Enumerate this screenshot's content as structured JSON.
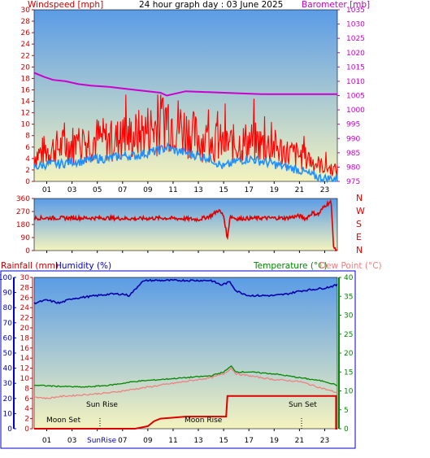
{
  "header": {
    "title": "24 hour graph day : 03 June 2025",
    "wind_label": "Windspeed [mph]",
    "baro_label": "Barometer [mb]"
  },
  "lower_header": {
    "rain_label": "Rainfall (mm)",
    "humidity_label": "Humidity (%)",
    "temp_label": "Temperature (°C)",
    "dew_label": "Dew Point (°C)"
  },
  "annotations": {
    "moon_set": "Moon Set",
    "sun_rise": "Sun Rise",
    "moon_rise": "Moon Rise",
    "sun_set": "Sun Set",
    "sunrise_axis": "SunRise"
  },
  "colors": {
    "wind": "#ff0000",
    "gust_avg": "#1e90ff",
    "barometer": "#cc00cc",
    "direction": "#dd0000",
    "humidity": "#0000aa",
    "temperature": "#008800",
    "dew_point": "#f08080",
    "rain": "#dd0000",
    "left_axis_top": "#cc0000",
    "left_axis_bottom": "#0000cc",
    "right_axis_bottom": "#008800",
    "sky_top": "#5a9ce6",
    "sky_bottom": "#f4f3bf"
  },
  "chart_data": [
    {
      "type": "line",
      "panel": "wind-barometer",
      "x_ticks": [
        "01",
        "03",
        "05",
        "07",
        "09",
        "11",
        "13",
        "15",
        "17",
        "19",
        "21",
        "23"
      ],
      "x_range": [
        0,
        24
      ],
      "left_axis": {
        "ticks": [
          "0",
          "2",
          "4",
          "6",
          "8",
          "10",
          "12",
          "14",
          "16",
          "18",
          "20",
          "22",
          "24",
          "26",
          "28",
          "30"
        ],
        "range": [
          0,
          30
        ]
      },
      "right_axis": {
        "ticks": [
          "975",
          "980",
          "985",
          "990",
          "995",
          "1000",
          "1005",
          "1010",
          "1015",
          "1020",
          "1025",
          "1030",
          "1035"
        ],
        "range": [
          975,
          1035
        ]
      },
      "series": [
        {
          "key": "gust",
          "x": [
            0,
            1,
            2,
            3,
            4,
            5,
            6,
            7,
            8,
            9,
            10,
            10.5,
            11,
            12,
            13,
            14,
            15,
            16,
            17,
            18,
            19,
            20,
            21,
            22,
            23,
            24
          ],
          "values": [
            4.5,
            5.5,
            6,
            6.5,
            7,
            7.5,
            7,
            7.5,
            8,
            9,
            10,
            11.5,
            10.5,
            9,
            7.5,
            7,
            6.5,
            6.5,
            7,
            6.5,
            6,
            5,
            4.5,
            3.5,
            2.5,
            2
          ]
        },
        {
          "key": "average",
          "x": [
            0,
            1,
            2,
            3,
            4,
            5,
            6,
            7,
            8,
            9,
            10,
            10.5,
            11,
            12,
            13,
            14,
            15,
            16,
            17,
            18,
            19,
            20,
            21,
            22,
            23,
            24
          ],
          "values": [
            2.5,
            3,
            3,
            3.5,
            3.5,
            4,
            4,
            4.5,
            4.5,
            5,
            5.5,
            6,
            5.5,
            5,
            4.5,
            4,
            2.5,
            3.5,
            4,
            3.5,
            3,
            2.5,
            2,
            1,
            0.5,
            0.5
          ]
        },
        {
          "key": "barometer",
          "x": [
            0,
            0.8,
            1.5,
            2.5,
            3.5,
            4.5,
            6,
            7,
            8,
            9,
            10,
            10.5,
            11,
            12,
            15,
            18,
            21,
            22,
            24
          ],
          "values": [
            1013,
            1011.5,
            1010.5,
            1010,
            1009,
            1008.5,
            1008,
            1007.5,
            1007,
            1006.5,
            1006,
            1005,
            1005.5,
            1006.5,
            1006,
            1005.5,
            1005.5,
            1005.5,
            1005.5
          ]
        }
      ]
    },
    {
      "type": "line",
      "panel": "wind-direction",
      "x_range": [
        0,
        24
      ],
      "left_axis": {
        "ticks": [
          "0",
          "90",
          "180",
          "270",
          "360"
        ],
        "range": [
          0,
          360
        ]
      },
      "compass": [
        "N",
        "W",
        "S",
        "E",
        "N"
      ],
      "series": [
        {
          "key": "direction",
          "x": [
            0,
            2,
            4,
            6,
            8,
            10,
            12,
            13,
            14,
            14.6,
            15,
            15.3,
            15.5,
            16,
            18,
            20,
            21,
            21.5,
            22,
            22.5,
            23,
            23.5,
            23.7,
            23.8,
            24
          ],
          "values": [
            225,
            225,
            225,
            225,
            220,
            225,
            220,
            215,
            240,
            280,
            240,
            80,
            240,
            220,
            225,
            225,
            240,
            220,
            260,
            250,
            310,
            340,
            40,
            5,
            5
          ]
        }
      ]
    },
    {
      "type": "line",
      "panel": "rain-humidity-temp",
      "x_ticks": [
        "01",
        "03",
        "05",
        "07",
        "09",
        "11",
        "13",
        "15",
        "17",
        "19",
        "21",
        "23"
      ],
      "x_range": [
        0,
        24
      ],
      "left_axis_outer": {
        "ticks": [
          "0",
          "10",
          "20",
          "30",
          "40",
          "50",
          "60",
          "70",
          "80",
          "90",
          "100"
        ],
        "range": [
          0,
          100
        ]
      },
      "left_axis_inner": {
        "ticks": [
          "0",
          "2",
          "4",
          "6",
          "8",
          "10",
          "12",
          "14",
          "16",
          "18",
          "20",
          "22",
          "24",
          "26",
          "28",
          "30"
        ],
        "range": [
          0,
          30
        ]
      },
      "right_axis": {
        "ticks": [
          "0",
          "5",
          "10",
          "15",
          "20",
          "25",
          "30",
          "35",
          "40"
        ],
        "range": [
          0,
          40
        ]
      },
      "series": [
        {
          "key": "humidity",
          "x": [
            0,
            1,
            2,
            3,
            4,
            5,
            6,
            7,
            7.5,
            8,
            8.5,
            9,
            10,
            12,
            14,
            14.8,
            15.5,
            16,
            17,
            18,
            19,
            20,
            21,
            22,
            23,
            24
          ],
          "values": [
            83,
            85,
            83,
            86,
            87,
            88,
            89,
            89,
            88,
            92,
            97,
            98,
            98,
            98,
            98,
            95,
            97,
            91,
            88,
            88,
            88,
            89,
            91,
            92,
            93,
            95
          ]
        },
        {
          "key": "temperature",
          "x": [
            0,
            2,
            4,
            6,
            8,
            10,
            12,
            14,
            15,
            15.6,
            16,
            17,
            19,
            21,
            23,
            24
          ],
          "values": [
            11.5,
            11.2,
            11,
            11.5,
            12.5,
            13,
            13.5,
            14,
            15,
            16.5,
            15,
            15,
            14.5,
            13.5,
            12.5,
            11.5
          ]
        },
        {
          "key": "dew_point",
          "x": [
            0,
            1,
            2,
            4,
            6,
            8,
            10,
            12,
            14,
            15,
            15.6,
            16,
            17,
            19,
            21,
            23,
            24
          ],
          "values": [
            8.5,
            8,
            8.5,
            9,
            9.5,
            10.5,
            11.5,
            12.5,
            13.5,
            14.5,
            16,
            14.5,
            14,
            13,
            12.5,
            10.5,
            9.5
          ]
        },
        {
          "key": "rain",
          "x": [
            0,
            7.5,
            8,
            9,
            9.5,
            10,
            11,
            12,
            12.5,
            14,
            15,
            15.2,
            15.3,
            16,
            20,
            23,
            23.9,
            23.9,
            24
          ],
          "values": [
            0,
            0,
            0,
            0.5,
            1.5,
            2,
            2.2,
            2.4,
            2.4,
            2.4,
            2.4,
            2.4,
            6.5,
            6.5,
            6.5,
            6.5,
            6.5,
            0,
            0
          ]
        }
      ]
    }
  ]
}
